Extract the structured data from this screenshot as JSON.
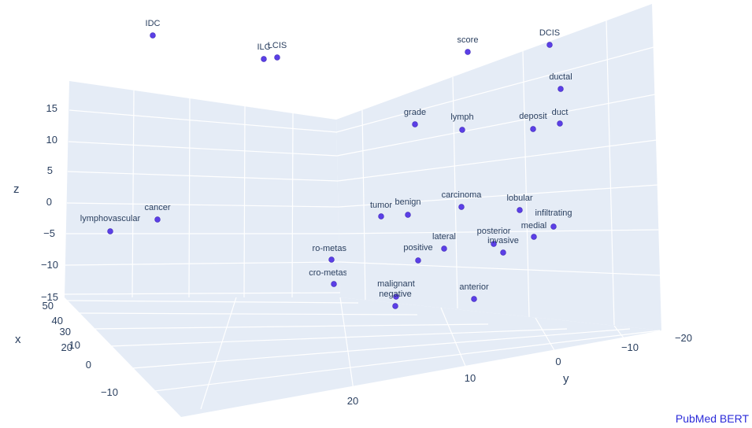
{
  "chart_data": {
    "type": "scatter3d",
    "axes": {
      "x": {
        "title": "x",
        "ticks": [
          "50",
          "40",
          "30",
          "20",
          "10",
          "0",
          "−10"
        ]
      },
      "y": {
        "title": "y",
        "ticks": [
          "20",
          "10",
          "0",
          "−10",
          "−20"
        ]
      },
      "z": {
        "title": "z",
        "ticks": [
          "15",
          "10",
          "5",
          "0",
          "−5",
          "−10",
          "−15"
        ]
      }
    },
    "marker_color": "#5b3fe6",
    "points": [
      {
        "label": "IDC"
      },
      {
        "label": "ILC"
      },
      {
        "label": "LCIS"
      },
      {
        "label": "score"
      },
      {
        "label": "DCIS"
      },
      {
        "label": "ductal"
      },
      {
        "label": "grade"
      },
      {
        "label": "lymph"
      },
      {
        "label": "deposit"
      },
      {
        "label": "duct"
      },
      {
        "label": "carcinoma"
      },
      {
        "label": "benign"
      },
      {
        "label": "tumor"
      },
      {
        "label": "lobular"
      },
      {
        "label": "infiltrating"
      },
      {
        "label": "cancer"
      },
      {
        "label": "lymphovascular"
      },
      {
        "label": "posterior"
      },
      {
        "label": "medial"
      },
      {
        "label": "lateral"
      },
      {
        "label": "invasive"
      },
      {
        "label": "positive"
      },
      {
        "label": "micro-metastasis"
      },
      {
        "label": "micro-metastases"
      },
      {
        "label": "malignant"
      },
      {
        "label": "negative"
      },
      {
        "label": "anterior"
      }
    ],
    "caption": "PubMed BERT"
  }
}
